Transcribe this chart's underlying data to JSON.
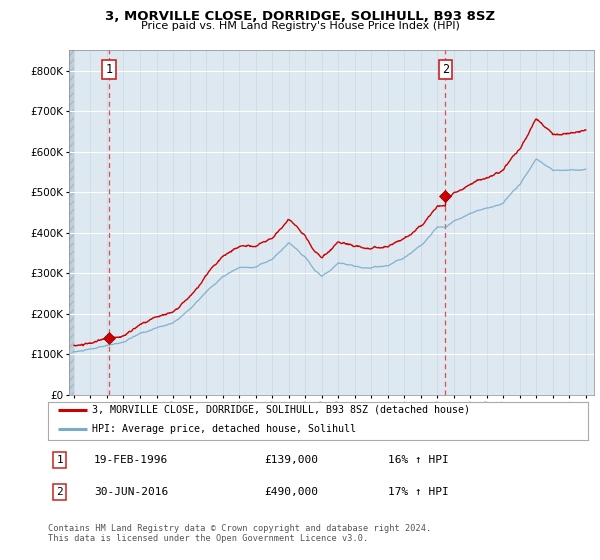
{
  "title": "3, MORVILLE CLOSE, DORRIDGE, SOLIHULL, B93 8SZ",
  "subtitle": "Price paid vs. HM Land Registry's House Price Index (HPI)",
  "background_color": "#dde8f0",
  "ylim": [
    0,
    850000
  ],
  "yticks": [
    0,
    100000,
    200000,
    300000,
    400000,
    500000,
    600000,
    700000,
    800000
  ],
  "ytick_labels": [
    "£0",
    "£100K",
    "£200K",
    "£300K",
    "£400K",
    "£500K",
    "£600K",
    "£700K",
    "£800K"
  ],
  "xlim_start": 1993.7,
  "xlim_end": 2025.5,
  "xticks": [
    1994,
    1995,
    1996,
    1997,
    1998,
    1999,
    2000,
    2001,
    2002,
    2003,
    2004,
    2005,
    2006,
    2007,
    2008,
    2009,
    2010,
    2011,
    2012,
    2013,
    2014,
    2015,
    2016,
    2017,
    2018,
    2019,
    2020,
    2021,
    2022,
    2023,
    2024,
    2025
  ],
  "purchase1_x": 1996.13,
  "purchase1_y": 139000,
  "purchase2_x": 2016.5,
  "purchase2_y": 490000,
  "legend_line1": "3, MORVILLE CLOSE, DORRIDGE, SOLIHULL, B93 8SZ (detached house)",
  "legend_line2": "HPI: Average price, detached house, Solihull",
  "annotation1_label": "1",
  "annotation1_date": "19-FEB-1996",
  "annotation1_price": "£139,000",
  "annotation1_hpi": "16% ↑ HPI",
  "annotation2_label": "2",
  "annotation2_date": "30-JUN-2016",
  "annotation2_price": "£490,000",
  "annotation2_hpi": "17% ↑ HPI",
  "footer": "Contains HM Land Registry data © Crown copyright and database right 2024.\nThis data is licensed under the Open Government Licence v3.0.",
  "red_line_color": "#cc0000",
  "blue_line_color": "#7aabcc",
  "marker_color": "#cc0000",
  "hpi_base_1996": 120000,
  "red_base_1996": 139000,
  "hpi_base_2016": 418000,
  "red_base_2016": 490000
}
